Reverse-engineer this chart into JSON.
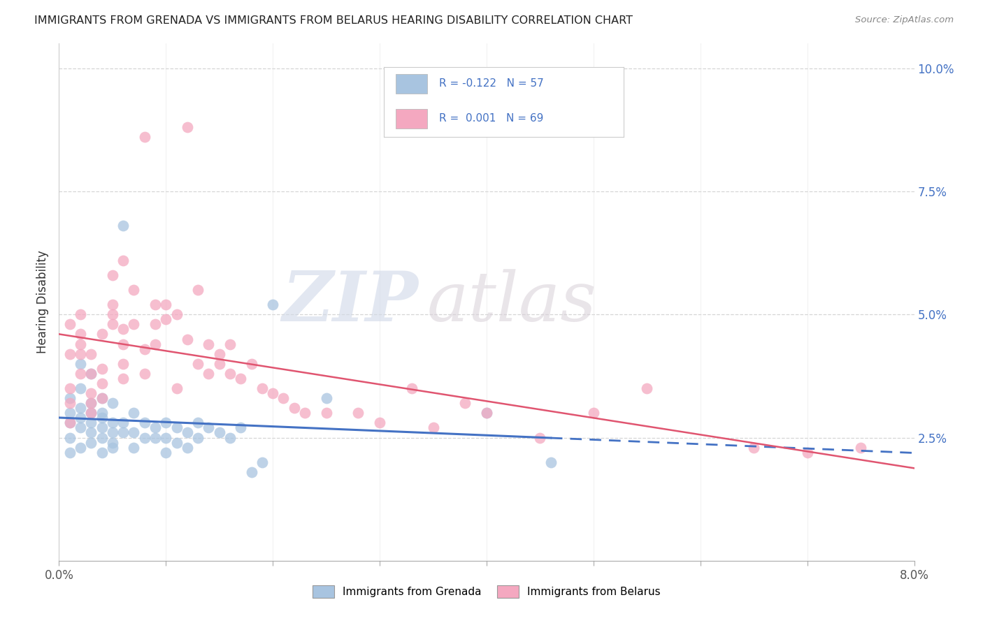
{
  "title": "IMMIGRANTS FROM GRENADA VS IMMIGRANTS FROM BELARUS HEARING DISABILITY CORRELATION CHART",
  "source": "Source: ZipAtlas.com",
  "ylabel": "Hearing Disability",
  "legend_grenada": "Immigrants from Grenada",
  "legend_belarus": "Immigrants from Belarus",
  "R_grenada": "-0.122",
  "N_grenada": "57",
  "R_belarus": "0.001",
  "N_belarus": "69",
  "xmin": 0.0,
  "xmax": 0.08,
  "ymin": 0.0,
  "ymax": 0.105,
  "grenada_color": "#a8c4e0",
  "belarus_color": "#f4a8c0",
  "grenada_line_color": "#4472C4",
  "belarus_line_color": "#E05570",
  "background_color": "#ffffff",
  "watermark_zip": "ZIP",
  "watermark_atlas": "atlas",
  "grenada_points": [
    [
      0.001,
      0.033
    ],
    [
      0.001,
      0.03
    ],
    [
      0.001,
      0.028
    ],
    [
      0.001,
      0.025
    ],
    [
      0.001,
      0.022
    ],
    [
      0.002,
      0.031
    ],
    [
      0.002,
      0.029
    ],
    [
      0.002,
      0.027
    ],
    [
      0.002,
      0.035
    ],
    [
      0.002,
      0.023
    ],
    [
      0.002,
      0.04
    ],
    [
      0.003,
      0.03
    ],
    [
      0.003,
      0.028
    ],
    [
      0.003,
      0.032
    ],
    [
      0.003,
      0.026
    ],
    [
      0.003,
      0.038
    ],
    [
      0.003,
      0.024
    ],
    [
      0.004,
      0.029
    ],
    [
      0.004,
      0.025
    ],
    [
      0.004,
      0.022
    ],
    [
      0.004,
      0.033
    ],
    [
      0.004,
      0.027
    ],
    [
      0.004,
      0.03
    ],
    [
      0.005,
      0.028
    ],
    [
      0.005,
      0.024
    ],
    [
      0.005,
      0.032
    ],
    [
      0.005,
      0.026
    ],
    [
      0.005,
      0.023
    ],
    [
      0.006,
      0.026
    ],
    [
      0.006,
      0.028
    ],
    [
      0.006,
      0.068
    ],
    [
      0.007,
      0.03
    ],
    [
      0.007,
      0.026
    ],
    [
      0.007,
      0.023
    ],
    [
      0.008,
      0.025
    ],
    [
      0.008,
      0.028
    ],
    [
      0.009,
      0.027
    ],
    [
      0.009,
      0.025
    ],
    [
      0.01,
      0.028
    ],
    [
      0.01,
      0.025
    ],
    [
      0.01,
      0.022
    ],
    [
      0.011,
      0.027
    ],
    [
      0.011,
      0.024
    ],
    [
      0.012,
      0.026
    ],
    [
      0.012,
      0.023
    ],
    [
      0.013,
      0.025
    ],
    [
      0.013,
      0.028
    ],
    [
      0.014,
      0.027
    ],
    [
      0.015,
      0.026
    ],
    [
      0.016,
      0.025
    ],
    [
      0.017,
      0.027
    ],
    [
      0.018,
      0.018
    ],
    [
      0.019,
      0.02
    ],
    [
      0.02,
      0.052
    ],
    [
      0.025,
      0.033
    ],
    [
      0.04,
      0.03
    ],
    [
      0.046,
      0.02
    ]
  ],
  "belarus_points": [
    [
      0.001,
      0.032
    ],
    [
      0.001,
      0.048
    ],
    [
      0.001,
      0.028
    ],
    [
      0.001,
      0.035
    ],
    [
      0.001,
      0.042
    ],
    [
      0.002,
      0.05
    ],
    [
      0.002,
      0.046
    ],
    [
      0.002,
      0.044
    ],
    [
      0.002,
      0.038
    ],
    [
      0.002,
      0.042
    ],
    [
      0.003,
      0.032
    ],
    [
      0.003,
      0.034
    ],
    [
      0.003,
      0.03
    ],
    [
      0.003,
      0.038
    ],
    [
      0.003,
      0.042
    ],
    [
      0.004,
      0.036
    ],
    [
      0.004,
      0.033
    ],
    [
      0.004,
      0.039
    ],
    [
      0.004,
      0.046
    ],
    [
      0.005,
      0.05
    ],
    [
      0.005,
      0.052
    ],
    [
      0.005,
      0.058
    ],
    [
      0.005,
      0.048
    ],
    [
      0.006,
      0.044
    ],
    [
      0.006,
      0.04
    ],
    [
      0.006,
      0.047
    ],
    [
      0.006,
      0.037
    ],
    [
      0.006,
      0.061
    ],
    [
      0.007,
      0.055
    ],
    [
      0.007,
      0.048
    ],
    [
      0.008,
      0.043
    ],
    [
      0.008,
      0.038
    ],
    [
      0.008,
      0.086
    ],
    [
      0.009,
      0.052
    ],
    [
      0.009,
      0.048
    ],
    [
      0.009,
      0.044
    ],
    [
      0.01,
      0.052
    ],
    [
      0.01,
      0.049
    ],
    [
      0.011,
      0.05
    ],
    [
      0.011,
      0.035
    ],
    [
      0.012,
      0.045
    ],
    [
      0.012,
      0.088
    ],
    [
      0.013,
      0.055
    ],
    [
      0.013,
      0.04
    ],
    [
      0.014,
      0.038
    ],
    [
      0.014,
      0.044
    ],
    [
      0.015,
      0.042
    ],
    [
      0.015,
      0.04
    ],
    [
      0.016,
      0.044
    ],
    [
      0.016,
      0.038
    ],
    [
      0.017,
      0.037
    ],
    [
      0.018,
      0.04
    ],
    [
      0.019,
      0.035
    ],
    [
      0.02,
      0.034
    ],
    [
      0.021,
      0.033
    ],
    [
      0.022,
      0.031
    ],
    [
      0.023,
      0.03
    ],
    [
      0.025,
      0.03
    ],
    [
      0.028,
      0.03
    ],
    [
      0.03,
      0.028
    ],
    [
      0.033,
      0.035
    ],
    [
      0.035,
      0.027
    ],
    [
      0.038,
      0.032
    ],
    [
      0.04,
      0.03
    ],
    [
      0.045,
      0.025
    ],
    [
      0.05,
      0.03
    ],
    [
      0.055,
      0.035
    ],
    [
      0.065,
      0.023
    ],
    [
      0.07,
      0.022
    ],
    [
      0.075,
      0.023
    ]
  ],
  "xtick_positions": [
    0.0,
    0.01,
    0.02,
    0.03,
    0.04,
    0.05,
    0.06,
    0.07,
    0.08
  ],
  "ytick_positions": [
    0.025,
    0.05,
    0.075,
    0.1
  ],
  "ytick_labels": [
    "2.5%",
    "5.0%",
    "7.5%",
    "10.0%"
  ]
}
